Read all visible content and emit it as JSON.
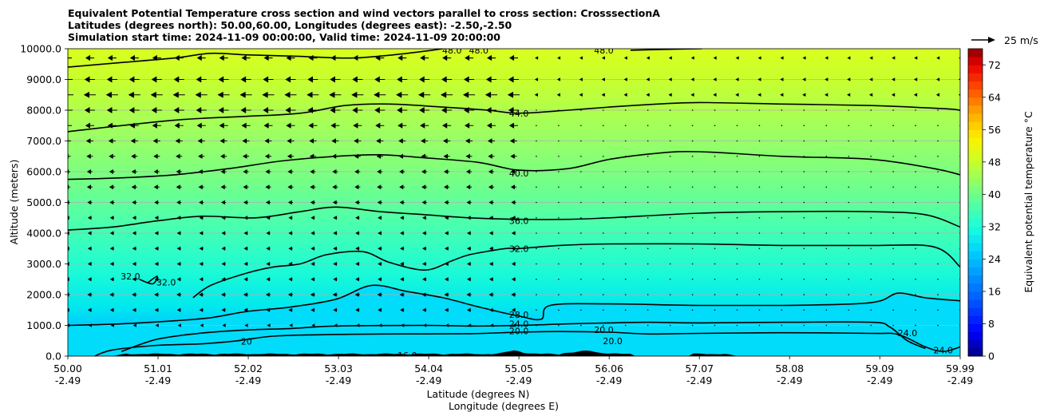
{
  "title_lines": [
    "Equivalent Potential Temperature cross section and wind vectors parallel to cross section: CrosssectionA",
    "Latitudes (degrees north): 50.00,60.00, Longitudes (degrees east): -2.50,-2.50",
    "Simulation start time: 2024-11-09 00:00:00, Valid time: 2024-11-09 20:00:00"
  ],
  "quiver_key": "25 m/s",
  "chart_data": {
    "type": "heatmap",
    "ylabel": "Altitude (meters)",
    "xlabel_lines": [
      "Latitude (degrees N)",
      "Longitude (degrees E)"
    ],
    "colorbar_label": "Equivalent potential temperature °C",
    "ylim": [
      0,
      10000
    ],
    "xlim": [
      50.0,
      59.99
    ],
    "grid": "horizontal",
    "y_ticks": [
      "0.0",
      "1000.0",
      "2000.0",
      "3000.0",
      "4000.0",
      "5000.0",
      "6000.0",
      "7000.0",
      "8000.0",
      "9000.0",
      "10000.0"
    ],
    "x_ticks": [
      {
        "lat": "50.00",
        "lon": "-2.49"
      },
      {
        "lat": "51.01",
        "lon": "-2.49"
      },
      {
        "lat": "52.02",
        "lon": "-2.49"
      },
      {
        "lat": "53.03",
        "lon": "-2.49"
      },
      {
        "lat": "54.04",
        "lon": "-2.49"
      },
      {
        "lat": "55.05",
        "lon": "-2.49"
      },
      {
        "lat": "56.06",
        "lon": "-2.49"
      },
      {
        "lat": "57.07",
        "lon": "-2.49"
      },
      {
        "lat": "58.08",
        "lon": "-2.49"
      },
      {
        "lat": "59.09",
        "lon": "-2.49"
      },
      {
        "lat": "59.99",
        "lon": "-2.49"
      }
    ],
    "colorbar_ticks": [
      "0",
      "8",
      "16",
      "24",
      "32",
      "40",
      "48",
      "56",
      "64",
      "72"
    ],
    "colorbar_range": [
      0,
      76
    ],
    "contour_levels": [
      {
        "label": "16.0",
        "value": 16
      },
      {
        "label": "20.0",
        "value": 20
      },
      {
        "label": "24.0",
        "value": 24
      },
      {
        "label": "28.0",
        "value": 28
      },
      {
        "label": "32.0",
        "value": 32
      },
      {
        "label": "36.0",
        "value": 36
      },
      {
        "label": "40.0",
        "value": 40
      },
      {
        "label": "44.0",
        "value": 44
      },
      {
        "label": "48.0",
        "value": 48
      }
    ],
    "contour_lines": [
      {
        "value": 20,
        "points": [
          [
            50.3,
            0
          ],
          [
            50.5,
            200
          ],
          [
            51.0,
            350
          ],
          [
            51.5,
            400
          ],
          [
            51.9,
            500
          ],
          [
            52.3,
            650
          ],
          [
            52.9,
            700
          ],
          [
            53.5,
            720
          ],
          [
            54.5,
            730
          ],
          [
            55.05,
            780
          ],
          [
            55.5,
            800
          ],
          [
            56.06,
            780
          ],
          [
            56.5,
            720
          ],
          [
            57.07,
            740
          ],
          [
            58.0,
            760
          ],
          [
            59.0,
            740
          ],
          [
            59.3,
            700
          ],
          [
            59.6,
            300
          ],
          [
            59.8,
            150
          ],
          [
            59.99,
            300
          ]
        ]
      },
      {
        "value": 24,
        "points": [
          [
            50.6,
            150
          ],
          [
            51.0,
            550
          ],
          [
            51.5,
            750
          ],
          [
            52.0,
            850
          ],
          [
            52.5,
            900
          ],
          [
            53.0,
            980
          ],
          [
            54.0,
            1000
          ],
          [
            54.5,
            980
          ],
          [
            55.05,
            1000
          ],
          [
            55.6,
            1050
          ],
          [
            56.06,
            1080
          ],
          [
            56.5,
            1100
          ],
          [
            57.07,
            1080
          ],
          [
            58.0,
            1100
          ],
          [
            59.0,
            1100
          ],
          [
            59.2,
            950
          ],
          [
            59.4,
            500
          ],
          [
            59.6,
            250
          ]
        ]
      },
      {
        "value": 28,
        "points": [
          [
            50.0,
            1000
          ],
          [
            50.6,
            1050
          ],
          [
            51.2,
            1150
          ],
          [
            51.6,
            1250
          ],
          [
            52.0,
            1450
          ],
          [
            52.5,
            1600
          ],
          [
            53.0,
            1850
          ],
          [
            53.4,
            2300
          ],
          [
            53.8,
            2100
          ],
          [
            54.2,
            1900
          ],
          [
            54.6,
            1600
          ],
          [
            55.05,
            1300
          ],
          [
            55.3,
            1200
          ],
          [
            55.4,
            1650
          ],
          [
            56.06,
            1700
          ],
          [
            57.07,
            1650
          ],
          [
            58.0,
            1650
          ],
          [
            58.8,
            1700
          ],
          [
            59.1,
            1800
          ],
          [
            59.3,
            2050
          ],
          [
            59.6,
            1900
          ],
          [
            59.99,
            1800
          ]
        ]
      },
      {
        "value": 32,
        "points": [
          [
            51.4,
            1900
          ],
          [
            51.6,
            2300
          ],
          [
            52.0,
            2700
          ],
          [
            52.3,
            2900
          ],
          [
            52.6,
            3000
          ],
          [
            52.9,
            3300
          ],
          [
            53.3,
            3400
          ],
          [
            53.6,
            3050
          ],
          [
            54.0,
            2800
          ],
          [
            54.3,
            3100
          ],
          [
            54.5,
            3300
          ],
          [
            54.9,
            3500
          ],
          [
            55.05,
            3500
          ],
          [
            55.5,
            3600
          ],
          [
            56.06,
            3650
          ],
          [
            57.07,
            3650
          ],
          [
            58.0,
            3600
          ],
          [
            59.0,
            3600
          ],
          [
            59.7,
            3550
          ],
          [
            59.99,
            2900
          ]
        ]
      },
      {
        "value": 36,
        "points": [
          [
            50.0,
            4100
          ],
          [
            50.5,
            4200
          ],
          [
            51.0,
            4400
          ],
          [
            51.5,
            4550
          ],
          [
            52.1,
            4500
          ],
          [
            52.6,
            4700
          ],
          [
            53.0,
            4850
          ],
          [
            53.5,
            4700
          ],
          [
            54.0,
            4600
          ],
          [
            54.5,
            4500
          ],
          [
            55.05,
            4450
          ],
          [
            55.6,
            4450
          ],
          [
            56.06,
            4500
          ],
          [
            57.07,
            4650
          ],
          [
            58.0,
            4700
          ],
          [
            59.0,
            4700
          ],
          [
            59.6,
            4600
          ],
          [
            59.99,
            4200
          ]
        ]
      },
      {
        "value": 40,
        "points": [
          [
            50.0,
            5750
          ],
          [
            50.6,
            5800
          ],
          [
            51.2,
            5900
          ],
          [
            51.8,
            6100
          ],
          [
            52.4,
            6350
          ],
          [
            53.0,
            6500
          ],
          [
            53.5,
            6550
          ],
          [
            54.0,
            6450
          ],
          [
            54.6,
            6300
          ],
          [
            55.05,
            6050
          ],
          [
            55.6,
            6100
          ],
          [
            56.06,
            6400
          ],
          [
            56.6,
            6600
          ],
          [
            57.07,
            6650
          ],
          [
            58.0,
            6500
          ],
          [
            59.0,
            6400
          ],
          [
            59.7,
            6100
          ],
          [
            59.99,
            5900
          ]
        ]
      },
      {
        "value": 44,
        "points": [
          [
            50.0,
            7300
          ],
          [
            50.6,
            7500
          ],
          [
            51.3,
            7700
          ],
          [
            52.0,
            7800
          ],
          [
            52.6,
            7900
          ],
          [
            53.1,
            8150
          ],
          [
            53.6,
            8200
          ],
          [
            54.2,
            8100
          ],
          [
            54.7,
            8000
          ],
          [
            55.05,
            7900
          ],
          [
            55.6,
            8000
          ],
          [
            56.06,
            8100
          ],
          [
            56.6,
            8200
          ],
          [
            57.07,
            8250
          ],
          [
            58.0,
            8200
          ],
          [
            59.0,
            8150
          ],
          [
            59.8,
            8050
          ],
          [
            59.99,
            8000
          ]
        ]
      },
      {
        "value": 48,
        "points": [
          [
            50.0,
            9400
          ],
          [
            50.6,
            9550
          ],
          [
            51.2,
            9700
          ],
          [
            51.6,
            9850
          ],
          [
            52.0,
            9800
          ],
          [
            52.6,
            9750
          ],
          [
            53.2,
            9700
          ],
          [
            53.8,
            9850
          ],
          [
            54.2,
            10000
          ]
        ]
      },
      {
        "value": 48,
        "points": [
          [
            56.3,
            9950
          ],
          [
            56.7,
            9980
          ],
          [
            57.1,
            10000
          ]
        ]
      }
    ],
    "contour_label_marks": [
      {
        "text": "48.0",
        "x": 54.3,
        "y": 9950
      },
      {
        "text": "48.0",
        "x": 54.6,
        "y": 9950
      },
      {
        "text": "48.0",
        "x": 56.0,
        "y": 9950
      },
      {
        "text": "44.0",
        "x": 55.05,
        "y": 7900
      },
      {
        "text": "40.0",
        "x": 55.05,
        "y": 5950
      },
      {
        "text": "36.0",
        "x": 55.05,
        "y": 4400
      },
      {
        "text": "32.0",
        "x": 55.05,
        "y": 3500
      },
      {
        "text": "32.0",
        "x": 50.7,
        "y": 2600
      },
      {
        "text": "32.0",
        "x": 51.1,
        "y": 2400
      },
      {
        "text": "28.0",
        "x": 55.05,
        "y": 1350
      },
      {
        "text": "24.0",
        "x": 55.05,
        "y": 1050
      },
      {
        "text": "20.0",
        "x": 55.05,
        "y": 820
      },
      {
        "text": "20.0",
        "x": 56.0,
        "y": 860
      },
      {
        "text": "20.0",
        "x": 56.1,
        "y": 500
      },
      {
        "text": "20",
        "x": 52.0,
        "y": 480
      },
      {
        "text": "16.0",
        "x": 53.8,
        "y": 20
      },
      {
        "text": "24.0",
        "x": 59.4,
        "y": 750
      },
      {
        "text": "24.0",
        "x": 59.8,
        "y": 200
      }
    ],
    "wind_u": [
      {
        "alt": 9700,
        "u": -5
      },
      {
        "alt": 9000,
        "u": -6
      },
      {
        "alt": 8500,
        "u": -7
      },
      {
        "alt": 8000,
        "u": -6
      },
      {
        "alt": 7500,
        "u": -5
      },
      {
        "alt": 7000,
        "u": -4
      },
      {
        "alt": 6500,
        "u": -3.5
      },
      {
        "alt": 6000,
        "u": -3
      },
      {
        "alt": 5500,
        "u": -3
      },
      {
        "alt": 5000,
        "u": -2.5
      },
      {
        "alt": 4500,
        "u": -2
      },
      {
        "alt": 4000,
        "u": -2
      },
      {
        "alt": 3500,
        "u": -2
      },
      {
        "alt": 3000,
        "u": -2
      },
      {
        "alt": 2500,
        "u": -2
      },
      {
        "alt": 2000,
        "u": -2.5
      },
      {
        "alt": 1500,
        "u": -2
      },
      {
        "alt": 1000,
        "u": -1
      }
    ],
    "terrain_lat_range": [
      50.5,
      57.5
    ]
  }
}
